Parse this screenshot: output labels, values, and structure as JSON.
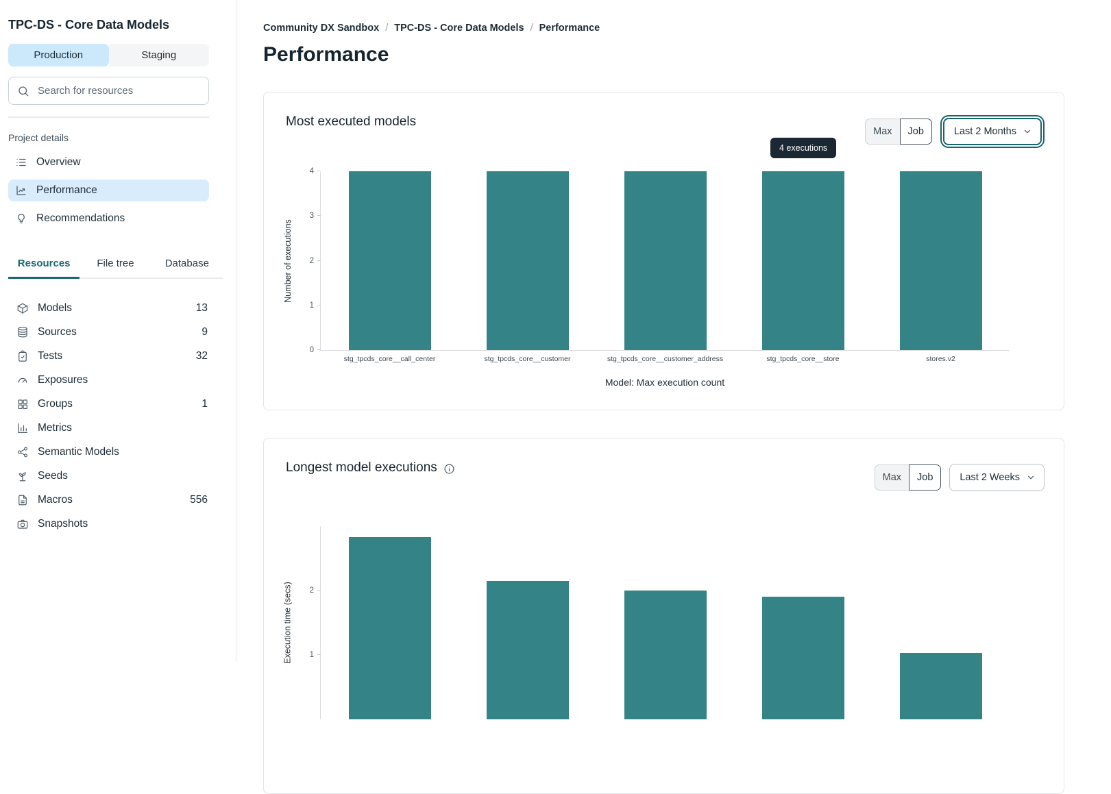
{
  "sidebar": {
    "title": "TPC-DS - Core Data Models",
    "env_tabs": [
      {
        "label": "Production",
        "active": true
      },
      {
        "label": "Staging",
        "active": false
      }
    ],
    "search": {
      "placeholder": "Search for resources"
    },
    "section_label": "Project details",
    "nav": [
      {
        "label": "Overview",
        "icon": "list"
      },
      {
        "label": "Performance",
        "icon": "chart-line",
        "active": true
      },
      {
        "label": "Recommendations",
        "icon": "lightbulb"
      }
    ],
    "resource_tabs": [
      {
        "label": "Resources",
        "active": true
      },
      {
        "label": "File tree",
        "active": false
      },
      {
        "label": "Database",
        "active": false
      }
    ],
    "resources": [
      {
        "label": "Models",
        "count": "13",
        "icon": "cube"
      },
      {
        "label": "Sources",
        "count": "9",
        "icon": "database"
      },
      {
        "label": "Tests",
        "count": "32",
        "icon": "clipboard"
      },
      {
        "label": "Exposures",
        "count": "",
        "icon": "gauge"
      },
      {
        "label": "Groups",
        "count": "1",
        "icon": "grid"
      },
      {
        "label": "Metrics",
        "count": "",
        "icon": "bar-chart"
      },
      {
        "label": "Semantic Models",
        "count": "",
        "icon": "network"
      },
      {
        "label": "Seeds",
        "count": "",
        "icon": "sprout"
      },
      {
        "label": "Macros",
        "count": "556",
        "icon": "file"
      },
      {
        "label": "Snapshots",
        "count": "",
        "icon": "camera"
      }
    ]
  },
  "main": {
    "breadcrumb": [
      {
        "label": "Community DX Sandbox"
      },
      {
        "label": "TPC-DS - Core Data Models"
      },
      {
        "label": "Performance"
      }
    ],
    "breadcrumb_separator": "/",
    "page_title": "Performance"
  },
  "colors": {
    "bar_teal": "#338387",
    "active_tab_teal": "#19686f",
    "active_nav_blue": "#d8ecfc",
    "env_active_blue": "#cce9fb",
    "tooltip_bg": "#1b2733"
  },
  "chart_data": [
    {
      "type": "bar",
      "title": "Most executed models",
      "categories": [
        "stg_tpcds_core__call_center",
        "stg_tpcds_core__customer",
        "stg_tpcds_core__customer_address",
        "stg_tpcds_core__store",
        "stores.v2"
      ],
      "values": [
        4,
        4,
        4,
        4,
        4
      ],
      "xlabel": "Model: Max execution count",
      "ylabel": "Number of executions",
      "ylim": [
        0,
        4
      ],
      "yticks": [
        0,
        1,
        2,
        3,
        4
      ],
      "grid": false,
      "legend": false,
      "bar_color": "#338387",
      "tooltip": "4 executions",
      "controls": {
        "toggle": [
          "Max",
          "Job"
        ],
        "selected_range": "Last 2 Months"
      }
    },
    {
      "type": "bar",
      "title": "Longest model executions",
      "categories": [
        "",
        "",
        "",
        "",
        ""
      ],
      "values": [
        2.83,
        2.15,
        2.0,
        1.9,
        1.03
      ],
      "xlabel": "",
      "ylabel": "Execution time (secs)",
      "ylim": [
        0,
        3
      ],
      "yticks": [
        1,
        2
      ],
      "grid": false,
      "legend": false,
      "bar_color": "#338387",
      "clipped_at_bottom": true,
      "controls": {
        "toggle": [
          "Max",
          "Job"
        ],
        "selected_range": "Last 2 Weeks"
      }
    }
  ]
}
